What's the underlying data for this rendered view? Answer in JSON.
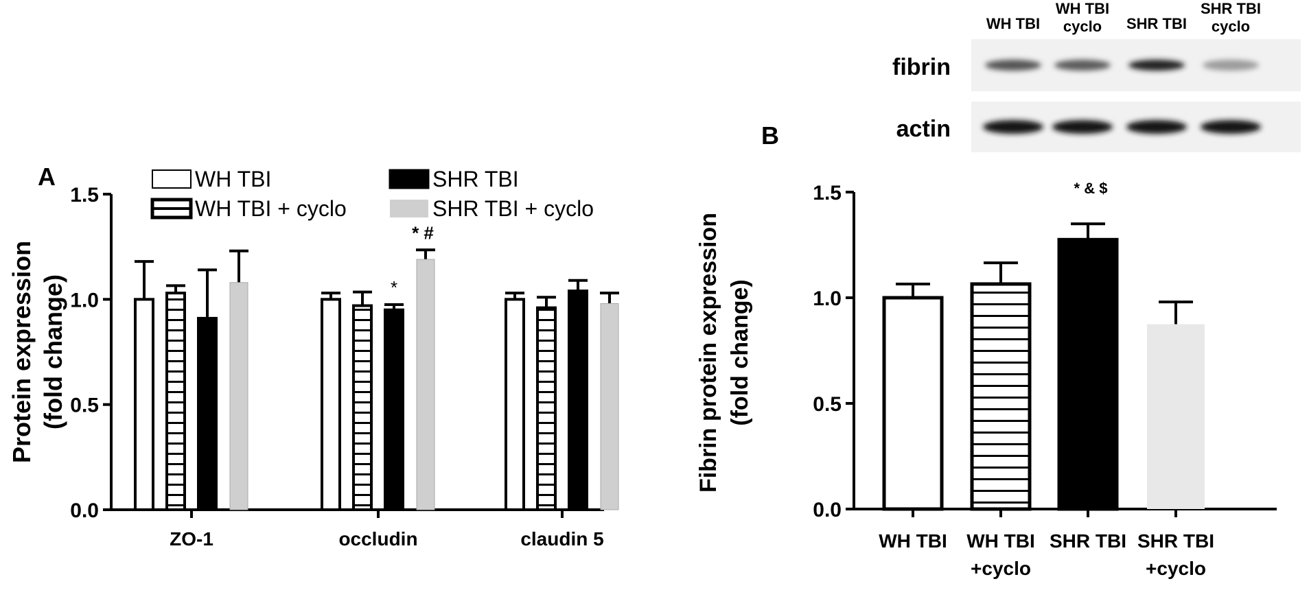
{
  "panels": {
    "a": {
      "label": "A"
    },
    "b": {
      "label": "B"
    }
  },
  "blot": {
    "lanes": [
      "WH TBI",
      "WH TBI\ncyclo",
      "SHR TBI",
      "SHR TBI\ncyclo"
    ],
    "rows": [
      {
        "label": "fibrin",
        "intensity": [
          0.72,
          0.68,
          0.95,
          0.38
        ]
      },
      {
        "label": "actin",
        "intensity": [
          1.0,
          1.0,
          1.0,
          1.0
        ]
      }
    ]
  },
  "chart_data": [
    {
      "id": "A",
      "type": "bar",
      "title": "",
      "xlabel": "",
      "ylabel": "Protein expression\n(fold change)",
      "ylim": [
        0,
        1.5
      ],
      "yticks": [
        "0.0",
        "0.5",
        "1.0",
        "1.5"
      ],
      "categories": [
        "ZO-1",
        "occludin",
        "claudin 5"
      ],
      "legend": {
        "position": "top",
        "entries": [
          "WH TBI",
          "WH TBI + cyclo",
          "SHR TBI",
          "SHR TBI + cyclo"
        ]
      },
      "series": [
        {
          "name": "WH TBI",
          "style": "open",
          "values": [
            1.0,
            1.0,
            1.0
          ],
          "errors": [
            0.18,
            0.03,
            0.03
          ],
          "annotations": [
            "",
            "",
            ""
          ]
        },
        {
          "name": "WH TBI + cyclo",
          "style": "striped",
          "values": [
            1.03,
            0.97,
            0.96
          ],
          "errors": [
            0.035,
            0.065,
            0.05
          ],
          "annotations": [
            "",
            "",
            ""
          ]
        },
        {
          "name": "SHR TBI",
          "style": "black",
          "values": [
            0.91,
            0.95,
            1.04
          ],
          "errors": [
            0.23,
            0.025,
            0.05
          ],
          "annotations": [
            "",
            "*",
            ""
          ]
        },
        {
          "name": "SHR TBI + cyclo",
          "style": "gray",
          "values": [
            1.08,
            1.19,
            0.98
          ],
          "errors": [
            0.15,
            0.045,
            0.05
          ],
          "annotations": [
            "",
            "* #",
            ""
          ]
        }
      ]
    },
    {
      "id": "B",
      "type": "bar",
      "title": "",
      "xlabel": "",
      "ylabel": "Fibrin protein expression\n(fold change)",
      "ylim": [
        0,
        1.5
      ],
      "yticks": [
        "0.0",
        "0.5",
        "1.0",
        "1.5"
      ],
      "categories": [
        "WH TBI",
        "WH TBI\n+cyclo",
        "SHR TBI",
        "SHR TBI\n+cyclo"
      ],
      "styles": [
        "open",
        "striped",
        "black",
        "lightgray"
      ],
      "values": [
        1.0,
        1.065,
        1.275,
        0.875
      ],
      "errors": [
        0.065,
        0.1,
        0.075,
        0.105
      ],
      "annotations": [
        "",
        "",
        "* & $",
        ""
      ]
    }
  ],
  "colors": {
    "ink": "#000000",
    "gray": "#cfcfcf",
    "lightgray": "#e8e8e8",
    "blot_bg": "#f1f1f1",
    "band": "#1a1a1a"
  }
}
